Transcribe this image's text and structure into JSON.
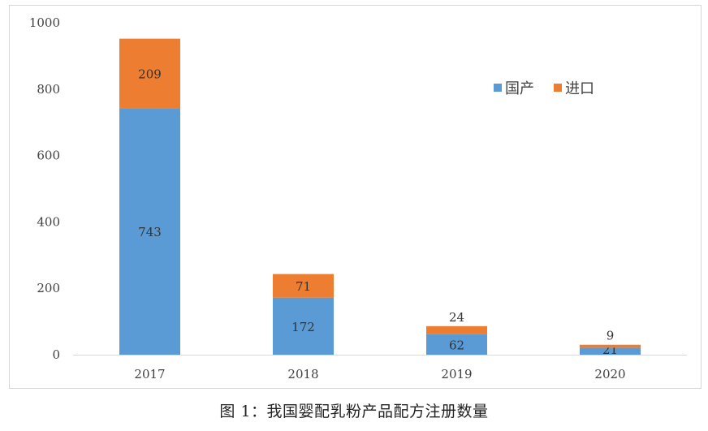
{
  "chart_data": {
    "type": "bar",
    "stacked": true,
    "categories": [
      "2017",
      "2018",
      "2019",
      "2020"
    ],
    "series": [
      {
        "name": "国产",
        "values": [
          743,
          172,
          62,
          21
        ],
        "color": "#5b9bd5"
      },
      {
        "name": "进口",
        "values": [
          209,
          71,
          24,
          9
        ],
        "color": "#ed7d31"
      }
    ],
    "ylim": [
      0,
      1000
    ],
    "yticks": [
      "0",
      "200",
      "400",
      "600",
      "800",
      "1000"
    ],
    "ytick_values": [
      0,
      200,
      400,
      600,
      800,
      1000
    ],
    "grid": false,
    "legend_position": "top-right"
  },
  "caption": "图 1：我国婴配乳粉产品配方注册数量",
  "colors": {
    "domestic": "#5b9bd5",
    "imported": "#ed7d31",
    "axis": "#d9d9d9",
    "text": "#404040",
    "label_text": "#333333"
  }
}
